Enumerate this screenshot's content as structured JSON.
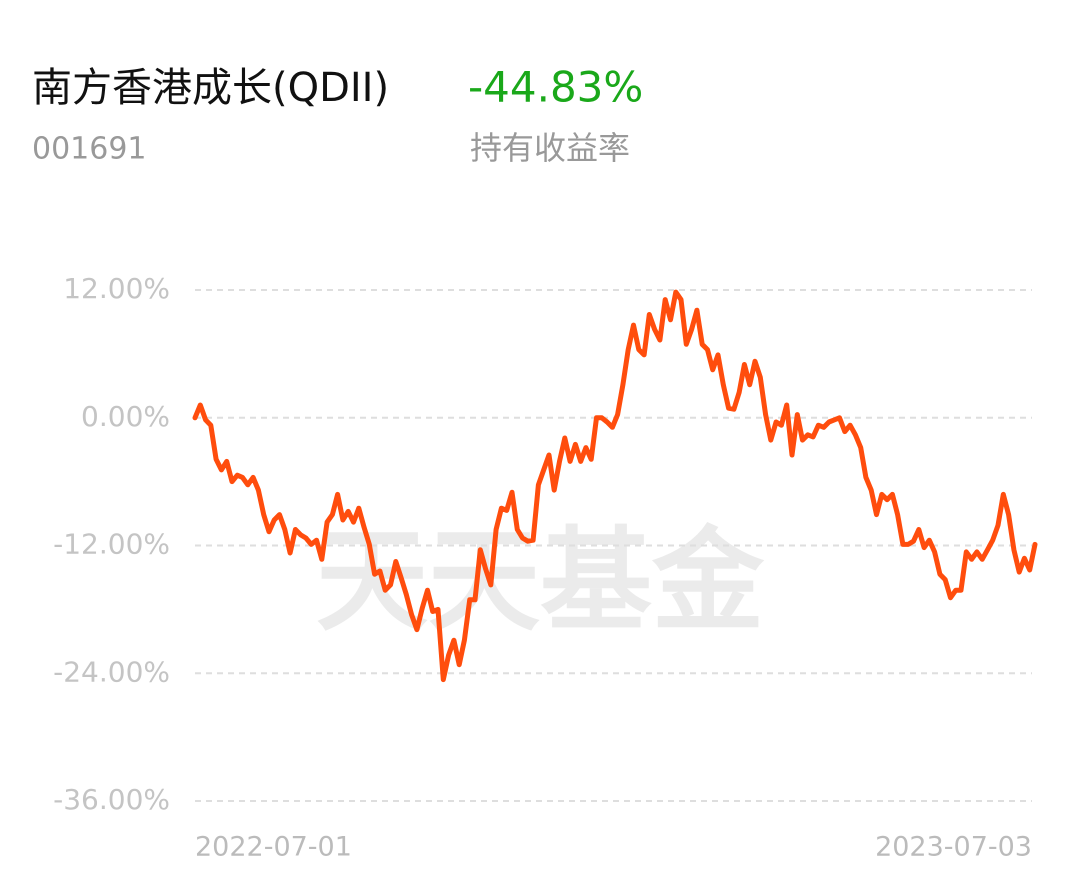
{
  "chart_data": {
    "type": "line",
    "title": "南方香港成长(QDII)",
    "code": "001691",
    "return": "-44.83%",
    "return_label": "持有收益率",
    "watermark": "天天基金",
    "categories": [
      "2022-07-01",
      null,
      null,
      null,
      null,
      null,
      null,
      null,
      null,
      null,
      null,
      null,
      null,
      null,
      null,
      null,
      null,
      null,
      null,
      null,
      null,
      null,
      null,
      null,
      null,
      null,
      null,
      null,
      null,
      null,
      null,
      null,
      null,
      null,
      null,
      null,
      null,
      null,
      null,
      null,
      null,
      null,
      null,
      null,
      null,
      null,
      null,
      null,
      null,
      null,
      null,
      null,
      null,
      null,
      null,
      null,
      null,
      null,
      null,
      null,
      null,
      null,
      null,
      null,
      null,
      null,
      null,
      null,
      null,
      null,
      null,
      null,
      null,
      null,
      null,
      null,
      null,
      null,
      null,
      null,
      null,
      null,
      null,
      null,
      null,
      null,
      null,
      null,
      null,
      null,
      null,
      null,
      null,
      null,
      null,
      null,
      null,
      null,
      null,
      null,
      null,
      null,
      null,
      null,
      null,
      null,
      null,
      null,
      null,
      null,
      null,
      null,
      null,
      null,
      null,
      null,
      null,
      null,
      null,
      null,
      null,
      null,
      null,
      null,
      null,
      null,
      null,
      null,
      null,
      null,
      null,
      null,
      null,
      null,
      null,
      null,
      null,
      null,
      null,
      null,
      null,
      null,
      null,
      null,
      null,
      null,
      null,
      null,
      null,
      null,
      null,
      null,
      null,
      null,
      null,
      null,
      null,
      null,
      null,
      "2023-07-03"
    ],
    "series": [
      {
        "name": null,
        "color": "#ff4d0d",
        "values": [
          0,
          1.2,
          -0.2,
          -0.7,
          -3.9,
          -4.9,
          -4.1,
          -6,
          -5.4,
          -5.6,
          -6.3,
          -5.6,
          -6.8,
          -9.1,
          -10.7,
          -9.6,
          -9.1,
          -10.5,
          -12.7,
          -10.5,
          -11,
          -11.3,
          -11.9,
          -11.5,
          -13.3,
          -9.8,
          -9.1,
          -7.2,
          -9.6,
          -8.8,
          -9.8,
          -8.5,
          -10.3,
          -11.9,
          -14.7,
          -14.4,
          -16.2,
          -15.7,
          -13.5,
          -15,
          -16.6,
          -18.5,
          -19.9,
          -17.9,
          -16.2,
          -18.2,
          -18,
          -24.6,
          -22.3,
          -20.9,
          -23.2,
          -20.9,
          -17.1,
          -17.1,
          -12.4,
          -14.2,
          -15.7,
          -10.5,
          -8.5,
          -8.7,
          -7,
          -10.5,
          -11.3,
          -11.6,
          -11.5,
          -6.3,
          -4.9,
          -3.5,
          -6.8,
          -4.1,
          -1.9,
          -4.1,
          -2.5,
          -4.1,
          -2.8,
          -3.9,
          0,
          0,
          -0.4,
          -0.9,
          0.3,
          3.1,
          6.4,
          8.7,
          6.4,
          5.9,
          9.7,
          8.3,
          7.3,
          11.1,
          9.2,
          11.8,
          11.1,
          6.9,
          8.3,
          10.1,
          6.9,
          6.4,
          4.5,
          5.9,
          3.1,
          0.9,
          0.8,
          2.4,
          5,
          3.1,
          5.3,
          3.8,
          0.3,
          -2.1,
          -0.4,
          -0.7,
          1.2,
          -3.5,
          0.3,
          -2.1,
          -1.6,
          -1.8,
          -0.7,
          -0.9,
          -0.4,
          -0.2,
          0,
          -1.3,
          -0.7,
          -1.6,
          -2.8,
          -5.6,
          -6.8,
          -9.1,
          -7.2,
          -7.7,
          -7.2,
          -9.1,
          -11.9,
          -11.9,
          -11.6,
          -10.5,
          -12.2,
          -11.5,
          -12.6,
          -14.7,
          -15.2,
          -16.9,
          -16.2,
          -16.2,
          -12.6,
          -13.3,
          -12.6,
          -13.3,
          -12.4,
          -11.5,
          -10.1,
          -7.2,
          -9.1,
          -12.4,
          -14.5,
          -13.2,
          -14.3,
          -11.9
        ]
      }
    ],
    "ylim": [
      -36,
      12
    ],
    "yticks": [
      {
        "value": 12,
        "label": "12.00%"
      },
      {
        "value": 0,
        "label": "0.00%"
      },
      {
        "value": -12,
        "label": "-12.00%"
      },
      {
        "value": -24,
        "label": "-24.00%"
      },
      {
        "value": -36,
        "label": "-36.00%"
      }
    ],
    "grid": true
  }
}
